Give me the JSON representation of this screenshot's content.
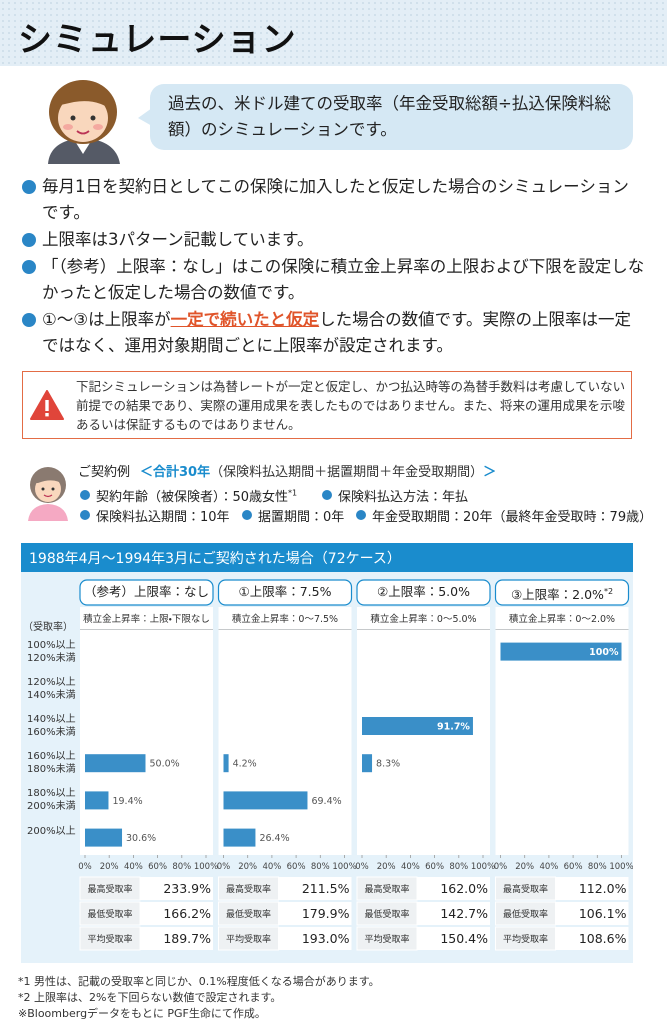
{
  "header": {
    "title": "シミュレーション"
  },
  "intro": {
    "text": "過去の、米ドル建ての受取率（年金受取総額÷払込保険料総額）のシミュレーションです。"
  },
  "bullets": [
    {
      "text": "毎月1日を契約日としてこの保険に加入したと仮定した場合のシミュレーションです。"
    },
    {
      "text": "上限率は3パターン記載しています。"
    },
    {
      "text": "「（参考）上限率：なし」はこの保険に積立金上昇率の上限および下限を設定しなかったと仮定した場合の数値です。"
    },
    {
      "before": "①～③は上限率が",
      "emphasis": "一定で続いたと仮定",
      "after": "した場合の数値です。実際の上限率は一定ではなく、運用対象期間ごとに上限率が設定されます。"
    }
  ],
  "notice": {
    "text": "下記シミュレーションは為替レートが一定と仮定し、かつ払込時等の為替手数料は考慮していない前提での結果であり、実際の運用成果を表したものではありません。また、将来の運用成果を示唆あるいは保証するものではありません。"
  },
  "example": {
    "label": "ご契約例",
    "summary": "＜合計30年",
    "summary_detail": "（保険料払込期間＋据置期間＋年金受取期間）",
    "summary_end": "＞",
    "items": [
      {
        "text": "契約年齢（被保険者）：50歳女性",
        "note": "*1"
      },
      {
        "text": "保険料払込方法：年払"
      },
      {
        "text": "保険料払込期間：10年"
      },
      {
        "text": "据置期間：0年"
      },
      {
        "text": "年金受取期間：20年（最終年金受取時：79歳）"
      }
    ]
  },
  "panel": {
    "title": "1988年4月～1994年3月にご契約された場合（72ケース）"
  },
  "chart_data": [
    {
      "type": "bar",
      "title": "（参考）上限率：なし",
      "subtitle": "積立金上昇率：上限・下限なし",
      "y_label": "（受取率）",
      "categories": [
        "100%以上\n120%未満",
        "120%以上\n140%未満",
        "140%以上\n160%未満",
        "160%以上\n180%未満",
        "180%以上\n200%未満",
        "200%以上"
      ],
      "values": [
        null,
        null,
        null,
        50.0,
        19.4,
        30.6
      ],
      "value_labels": [
        null,
        null,
        null,
        "50.0%",
        "19.4%",
        "30.6%"
      ],
      "color": "#3a8fc8",
      "xlim": [
        0,
        100
      ],
      "xticks": [
        {
          "value": 0,
          "label": "0%"
        },
        {
          "value": 20,
          "label": "20%"
        },
        {
          "value": 40,
          "label": "40%"
        },
        {
          "value": 60,
          "label": "60%"
        },
        {
          "value": 80,
          "label": "80%"
        },
        {
          "value": 100,
          "label": "100%"
        }
      ],
      "stats": [
        {
          "label": "最高受取率",
          "value": "233.9%"
        },
        {
          "label": "最低受取率",
          "value": "166.2%"
        },
        {
          "label": "平均受取率",
          "value": "189.7%"
        }
      ]
    },
    {
      "type": "bar",
      "title": "①上限率：7.5%",
      "subtitle": "積立金上昇率：0～7.5%",
      "values": [
        null,
        null,
        null,
        4.2,
        69.4,
        26.4
      ],
      "value_labels": [
        null,
        null,
        null,
        "4.2%",
        "69.4%",
        "26.4%"
      ],
      "color": "#3a8fc8",
      "xlim": [
        0,
        100
      ],
      "xticks": [
        {
          "value": 0,
          "label": "0%"
        },
        {
          "value": 20,
          "label": "20%"
        },
        {
          "value": 40,
          "label": "40%"
        },
        {
          "value": 60,
          "label": "60%"
        },
        {
          "value": 80,
          "label": "80%"
        },
        {
          "value": 100,
          "label": "100%"
        }
      ],
      "stats": [
        {
          "label": "最高受取率",
          "value": "211.5%"
        },
        {
          "label": "最低受取率",
          "value": "179.9%"
        },
        {
          "label": "平均受取率",
          "value": "193.0%"
        }
      ]
    },
    {
      "type": "bar",
      "title": "②上限率：5.0%",
      "subtitle": "積立金上昇率：0～5.0%",
      "values": [
        null,
        null,
        91.7,
        8.3,
        null,
        null
      ],
      "value_labels": [
        null,
        null,
        "91.7%",
        "8.3%",
        null,
        null
      ],
      "color": "#3a8fc8",
      "xlim": [
        0,
        100
      ],
      "xticks": [
        {
          "value": 0,
          "label": "0%"
        },
        {
          "value": 20,
          "label": "20%"
        },
        {
          "value": 40,
          "label": "40%"
        },
        {
          "value": 60,
          "label": "60%"
        },
        {
          "value": 80,
          "label": "80%"
        },
        {
          "value": 100,
          "label": "100%"
        }
      ],
      "stats": [
        {
          "label": "最高受取率",
          "value": "162.0%"
        },
        {
          "label": "最低受取率",
          "value": "142.7%"
        },
        {
          "label": "平均受取率",
          "value": "150.4%"
        }
      ]
    },
    {
      "type": "bar",
      "title": "③上限率：2.0%",
      "title_note": "*2",
      "subtitle": "積立金上昇率：0～2.0%",
      "values": [
        100,
        null,
        null,
        null,
        null,
        null
      ],
      "value_labels": [
        "100%",
        null,
        null,
        null,
        null,
        null
      ],
      "color": "#3a8fc8",
      "xlim": [
        0,
        100
      ],
      "xticks": [
        {
          "value": 0,
          "label": "0%"
        },
        {
          "value": 20,
          "label": "20%"
        },
        {
          "value": 40,
          "label": "40%"
        },
        {
          "value": 60,
          "label": "60%"
        },
        {
          "value": 80,
          "label": "80%"
        },
        {
          "value": 100,
          "label": "100%"
        }
      ],
      "stats": [
        {
          "label": "最高受取率",
          "value": "112.0%"
        },
        {
          "label": "最低受取率",
          "value": "106.1%"
        },
        {
          "label": "平均受取率",
          "value": "108.6%"
        }
      ]
    }
  ],
  "footnotes": [
    "*1 男性は、記載の受取率と同じか、0.1%程度低くなる場合があります。",
    "*2 上限率は、2%を下回らない数値で設定されます。",
    "※Bloombergデータをもとに PGF生命にて作成。"
  ]
}
